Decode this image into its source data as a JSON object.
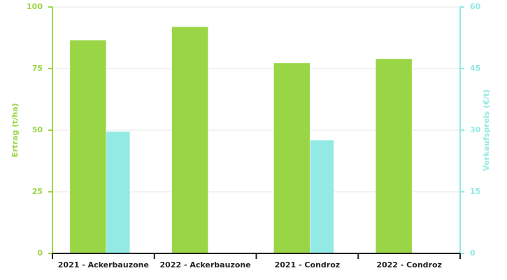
{
  "chart_data": {
    "type": "bar",
    "categories": [
      "2021 - Ackerbauzone",
      "2022 - Ackerbauzone",
      "2021 - Condroz",
      "2022 - Condroz"
    ],
    "y_label": "Ertrag (t/ha)",
    "y2_label": "Verkaufspreis (€/t)",
    "series": [
      {
        "color": "#9ad545",
        "values": [
          86.6,
          92,
          77.3,
          79
        ]
      },
      {
        "color": "#93e9e3",
        "axis": "y2",
        "values": [
          29.7,
          null,
          27.6,
          null
        ]
      }
    ],
    "ylim": [
      0,
      100
    ],
    "yticks": [
      0,
      25,
      50,
      75,
      100
    ],
    "y2lim": [
      0,
      60
    ],
    "y2ticks": [
      0,
      15,
      30,
      45,
      60
    ],
    "grid": true
  }
}
